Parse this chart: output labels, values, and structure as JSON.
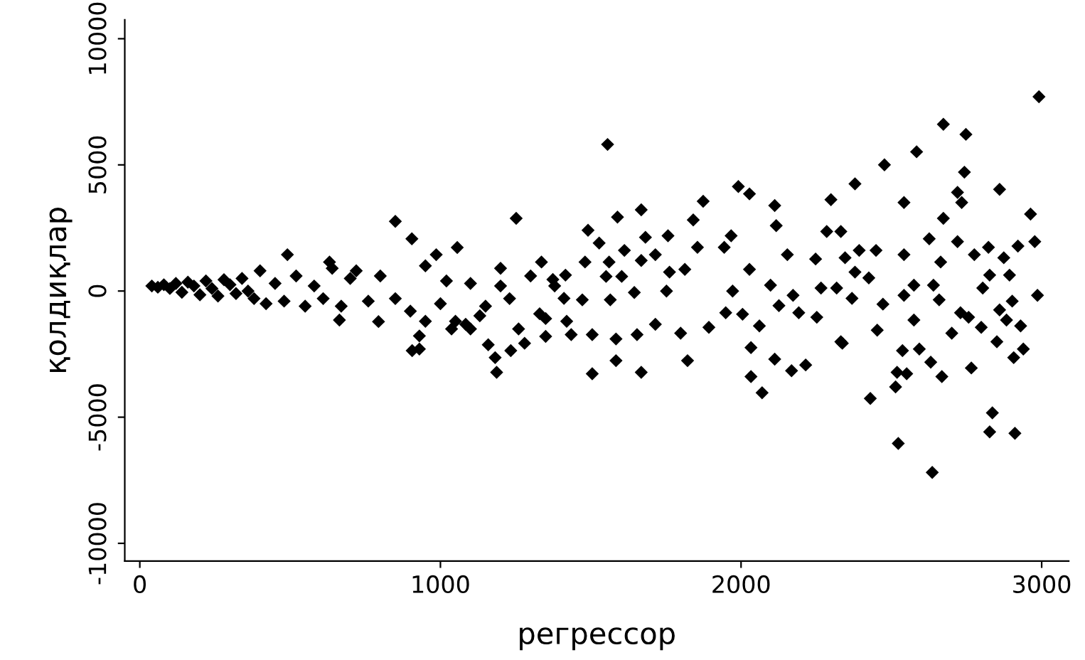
{
  "chart_data": {
    "type": "scatter",
    "xlabel": "регрессор",
    "ylabel": "қолдиқлар",
    "xlim": [
      -50,
      3090
    ],
    "ylim": [
      -10700,
      10750
    ],
    "xticks": [
      0,
      1000,
      2000,
      3000
    ],
    "yticks": [
      -10000,
      -5000,
      0,
      5000,
      10000
    ],
    "grid": false,
    "marker": "diamond",
    "legend": false,
    "series": [
      {
        "color": "#000000",
        "x": [
          40,
          60,
          80,
          100,
          120,
          140,
          160,
          180,
          200,
          220,
          240,
          260,
          280,
          300,
          320,
          340,
          360,
          380,
          400,
          420,
          450,
          480,
          491,
          520,
          550,
          580,
          610,
          631,
          640,
          664,
          670,
          700,
          720,
          760,
          794,
          800,
          850,
          850,
          900,
          905,
          906,
          930,
          930,
          950,
          950,
          986,
          1000,
          1020,
          1037,
          1050,
          1056,
          1084,
          1100,
          1100,
          1131,
          1150,
          1159,
          1182,
          1187,
          1200,
          1200,
          1230,
          1234,
          1252,
          1260,
          1280,
          1300,
          1330,
          1336,
          1350,
          1350,
          1374,
          1380,
          1411,
          1416,
          1420,
          1435,
          1472,
          1481,
          1491,
          1505,
          1505,
          1528,
          1551,
          1556,
          1561,
          1565,
          1584,
          1584,
          1589,
          1603,
          1612,
          1645,
          1654,
          1668,
          1668,
          1668,
          1682,
          1715,
          1715,
          1752,
          1757,
          1762,
          1799,
          1813,
          1822,
          1841,
          1855,
          1874,
          1893,
          1944,
          1949,
          1967,
          1972,
          1991,
          2005,
          2028,
          2028,
          2033,
          2033,
          2061,
          2070,
          2098,
          2112,
          2112,
          2117,
          2126,
          2154,
          2168,
          2173,
          2192,
          2215,
          2248,
          2252,
          2266,
          2285,
          2299,
          2318,
          2332,
          2332,
          2337,
          2346,
          2369,
          2379,
          2379,
          2393,
          2425,
          2430,
          2449,
          2453,
          2472,
          2477,
          2514,
          2519,
          2523,
          2537,
          2542,
          2542,
          2542,
          2551,
          2575,
          2575,
          2584,
          2593,
          2626,
          2631,
          2636,
          2640,
          2659,
          2664,
          2668,
          2673,
          2673,
          2701,
          2720,
          2720,
          2730,
          2734,
          2743,
          2748,
          2757,
          2766,
          2776,
          2799,
          2804,
          2823,
          2827,
          2827,
          2836,
          2851,
          2860,
          2860,
          2874,
          2883,
          2893,
          2902,
          2907,
          2911,
          2921,
          2930,
          2939,
          2963,
          2977,
          2986,
          2991
        ],
        "values": [
          200,
          150,
          250,
          100,
          300,
          -50,
          350,
          200,
          -150,
          400,
          100,
          -200,
          450,
          250,
          -100,
          500,
          0,
          -300,
          800,
          -500,
          300,
          -400,
          1440,
          600,
          -600,
          200,
          -300,
          1150,
          900,
          -1150,
          -600,
          500,
          800,
          -400,
          -1210,
          600,
          2760,
          -300,
          -800,
          2070,
          -2360,
          -1780,
          -2300,
          1000,
          -1200,
          1440,
          -500,
          400,
          -1500,
          -1200,
          1725,
          -1320,
          300,
          -1500,
          -980,
          -600,
          -2130,
          -2640,
          -3220,
          900,
          200,
          -300,
          -2360,
          2880,
          -1500,
          -2070,
          600,
          -900,
          1150,
          -1090,
          -1800,
          460,
          200,
          -290,
          630,
          -1200,
          -1730,
          -350,
          1150,
          2410,
          -1730,
          -3280,
          1900,
          580,
          5810,
          1150,
          -350,
          -1900,
          -2760,
          2930,
          580,
          1610,
          -60,
          -1730,
          3220,
          1210,
          -3220,
          2130,
          1440,
          -1320,
          0,
          2190,
          750,
          -1670,
          860,
          -2760,
          2820,
          1730,
          3560,
          -1440,
          1730,
          -860,
          2190,
          0,
          4140,
          -920,
          3850,
          860,
          -2240,
          -3390,
          -1380,
          -4030,
          230,
          3390,
          -2700,
          2590,
          -580,
          1440,
          -3160,
          -170,
          -860,
          -2930,
          1270,
          -1040,
          120,
          2360,
          3620,
          120,
          2360,
          -2010,
          -2070,
          1320,
          -290,
          4250,
          750,
          1610,
          520,
          -4260,
          1610,
          -1550,
          -520,
          5000,
          -3800,
          -3220,
          -6040,
          -2360,
          3510,
          1440,
          -170,
          -3280,
          230,
          -1150,
          5520,
          -2300,
          2070,
          -2820,
          -7190,
          230,
          -350,
          1150,
          -3390,
          2880,
          6610,
          -1670,
          1960,
          3910,
          -860,
          3510,
          4710,
          6210,
          -1040,
          -3050,
          1440,
          -1440,
          120,
          1730,
          630,
          -5580,
          -4830,
          -2010,
          4030,
          -750,
          1320,
          -1150,
          630,
          -400,
          -2640,
          -5640,
          1780,
          -1380,
          -2300,
          3050,
          1960,
          -170,
          7700
        ]
      }
    ]
  }
}
